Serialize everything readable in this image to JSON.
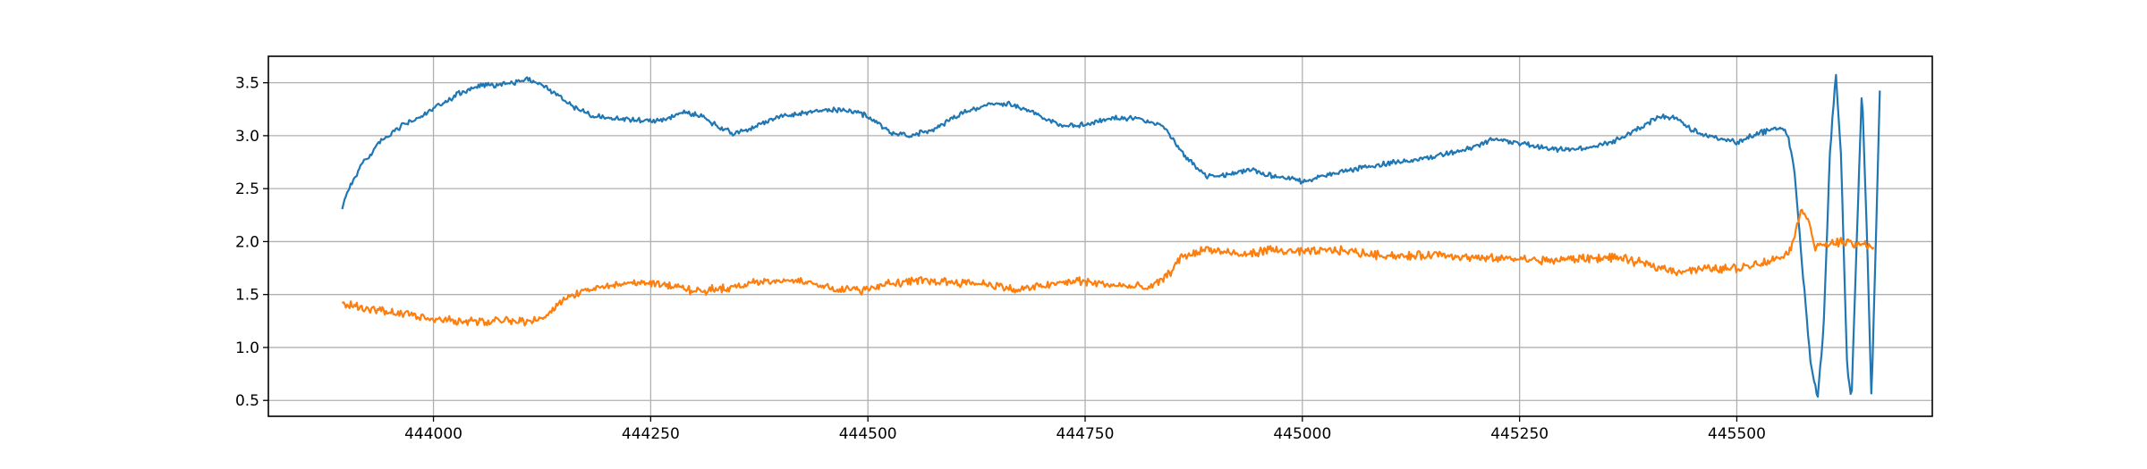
{
  "chart_data": {
    "type": "line",
    "title": "",
    "xlabel": "",
    "ylabel": "",
    "xlim": [
      443810,
      445725
    ],
    "ylim": [
      0.35,
      3.75
    ],
    "grid": true,
    "legend": "none",
    "x_ticks": [
      444000,
      444250,
      444500,
      444750,
      445000,
      445250,
      445500
    ],
    "x_tick_labels": [
      "444000",
      "444250",
      "444500",
      "444750",
      "445000",
      "445250",
      "445500"
    ],
    "y_ticks": [
      0.5,
      1.0,
      1.5,
      2.0,
      2.5,
      3.0,
      3.5
    ],
    "y_tick_labels": [
      "0.5",
      "1.0",
      "1.5",
      "2.0",
      "2.5",
      "3.0",
      "3.5"
    ],
    "series": [
      {
        "color": "#1f77b4",
        "noise": 0.018,
        "points": [
          [
            443895,
            2.33
          ],
          [
            443905,
            2.55
          ],
          [
            443920,
            2.75
          ],
          [
            443940,
            2.95
          ],
          [
            443965,
            3.1
          ],
          [
            443990,
            3.2
          ],
          [
            444010,
            3.3
          ],
          [
            444030,
            3.4
          ],
          [
            444050,
            3.46
          ],
          [
            444080,
            3.49
          ],
          [
            444110,
            3.53
          ],
          [
            444125,
            3.48
          ],
          [
            444140,
            3.4
          ],
          [
            444160,
            3.28
          ],
          [
            444180,
            3.2
          ],
          [
            444200,
            3.17
          ],
          [
            444230,
            3.15
          ],
          [
            444260,
            3.14
          ],
          [
            444290,
            3.22
          ],
          [
            444310,
            3.18
          ],
          [
            444325,
            3.1
          ],
          [
            444345,
            3.02
          ],
          [
            444370,
            3.08
          ],
          [
            444395,
            3.18
          ],
          [
            444430,
            3.22
          ],
          [
            444460,
            3.25
          ],
          [
            444490,
            3.22
          ],
          [
            444510,
            3.13
          ],
          [
            444530,
            3.01
          ],
          [
            444550,
            3.0
          ],
          [
            444580,
            3.08
          ],
          [
            444610,
            3.22
          ],
          [
            444640,
            3.3
          ],
          [
            444665,
            3.3
          ],
          [
            444690,
            3.22
          ],
          [
            444720,
            3.1
          ],
          [
            444750,
            3.1
          ],
          [
            444780,
            3.17
          ],
          [
            444810,
            3.16
          ],
          [
            444840,
            3.1
          ],
          [
            444865,
            2.8
          ],
          [
            444890,
            2.62
          ],
          [
            444915,
            2.63
          ],
          [
            444940,
            2.68
          ],
          [
            444965,
            2.62
          ],
          [
            445000,
            2.57
          ],
          [
            445030,
            2.63
          ],
          [
            445070,
            2.7
          ],
          [
            445110,
            2.75
          ],
          [
            445150,
            2.8
          ],
          [
            445190,
            2.87
          ],
          [
            445220,
            2.97
          ],
          [
            445250,
            2.93
          ],
          [
            445290,
            2.87
          ],
          [
            445330,
            2.88
          ],
          [
            445360,
            2.95
          ],
          [
            445390,
            3.08
          ],
          [
            445410,
            3.18
          ],
          [
            445430,
            3.17
          ],
          [
            445450,
            3.05
          ],
          [
            445480,
            2.96
          ],
          [
            445500,
            2.94
          ],
          [
            445525,
            3.02
          ],
          [
            445550,
            3.08
          ],
          [
            445558,
            3.03
          ],
          [
            445566,
            2.7
          ],
          [
            445575,
            1.8
          ],
          [
            445585,
            0.85
          ],
          [
            445593,
            0.52
          ],
          [
            445600,
            1.2
          ],
          [
            445607,
            2.8
          ],
          [
            445614,
            3.6
          ],
          [
            445620,
            2.8
          ],
          [
            445627,
            0.8
          ],
          [
            445632,
            0.5
          ],
          [
            445638,
            2.0
          ],
          [
            445644,
            3.47
          ],
          [
            445650,
            2.0
          ],
          [
            445655,
            0.52
          ],
          [
            445660,
            2.0
          ],
          [
            445665,
            3.57
          ]
        ]
      },
      {
        "color": "#ff7f0e",
        "noise": 0.03,
        "points": [
          [
            443895,
            1.42
          ],
          [
            443920,
            1.37
          ],
          [
            443960,
            1.32
          ],
          [
            444000,
            1.27
          ],
          [
            444040,
            1.24
          ],
          [
            444080,
            1.25
          ],
          [
            444110,
            1.24
          ],
          [
            444130,
            1.31
          ],
          [
            444150,
            1.45
          ],
          [
            444175,
            1.54
          ],
          [
            444200,
            1.58
          ],
          [
            444240,
            1.62
          ],
          [
            444270,
            1.59
          ],
          [
            444300,
            1.53
          ],
          [
            444340,
            1.57
          ],
          [
            444380,
            1.62
          ],
          [
            444420,
            1.64
          ],
          [
            444460,
            1.56
          ],
          [
            444490,
            1.54
          ],
          [
            444520,
            1.6
          ],
          [
            444560,
            1.63
          ],
          [
            444600,
            1.62
          ],
          [
            444640,
            1.6
          ],
          [
            444670,
            1.54
          ],
          [
            444700,
            1.58
          ],
          [
            444740,
            1.63
          ],
          [
            444780,
            1.59
          ],
          [
            444825,
            1.56
          ],
          [
            444845,
            1.68
          ],
          [
            444860,
            1.85
          ],
          [
            444890,
            1.93
          ],
          [
            444930,
            1.87
          ],
          [
            444960,
            1.92
          ],
          [
            445000,
            1.9
          ],
          [
            445040,
            1.92
          ],
          [
            445080,
            1.88
          ],
          [
            445120,
            1.86
          ],
          [
            445160,
            1.88
          ],
          [
            445200,
            1.84
          ],
          [
            445240,
            1.84
          ],
          [
            445280,
            1.82
          ],
          [
            445320,
            1.84
          ],
          [
            445360,
            1.85
          ],
          [
            445400,
            1.78
          ],
          [
            445430,
            1.72
          ],
          [
            445460,
            1.74
          ],
          [
            445500,
            1.75
          ],
          [
            445540,
            1.82
          ],
          [
            445560,
            1.9
          ],
          [
            445570,
            2.15
          ],
          [
            445575,
            2.32
          ],
          [
            445583,
            2.2
          ],
          [
            445590,
            1.95
          ],
          [
            445600,
            1.96
          ],
          [
            445615,
            2.0
          ],
          [
            445630,
            1.98
          ],
          [
            445645,
            1.97
          ],
          [
            445658,
            1.96
          ]
        ]
      }
    ]
  }
}
